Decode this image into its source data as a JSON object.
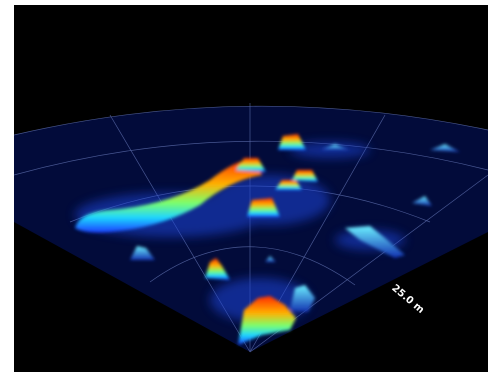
{
  "range_label": "25.0 m"
}
